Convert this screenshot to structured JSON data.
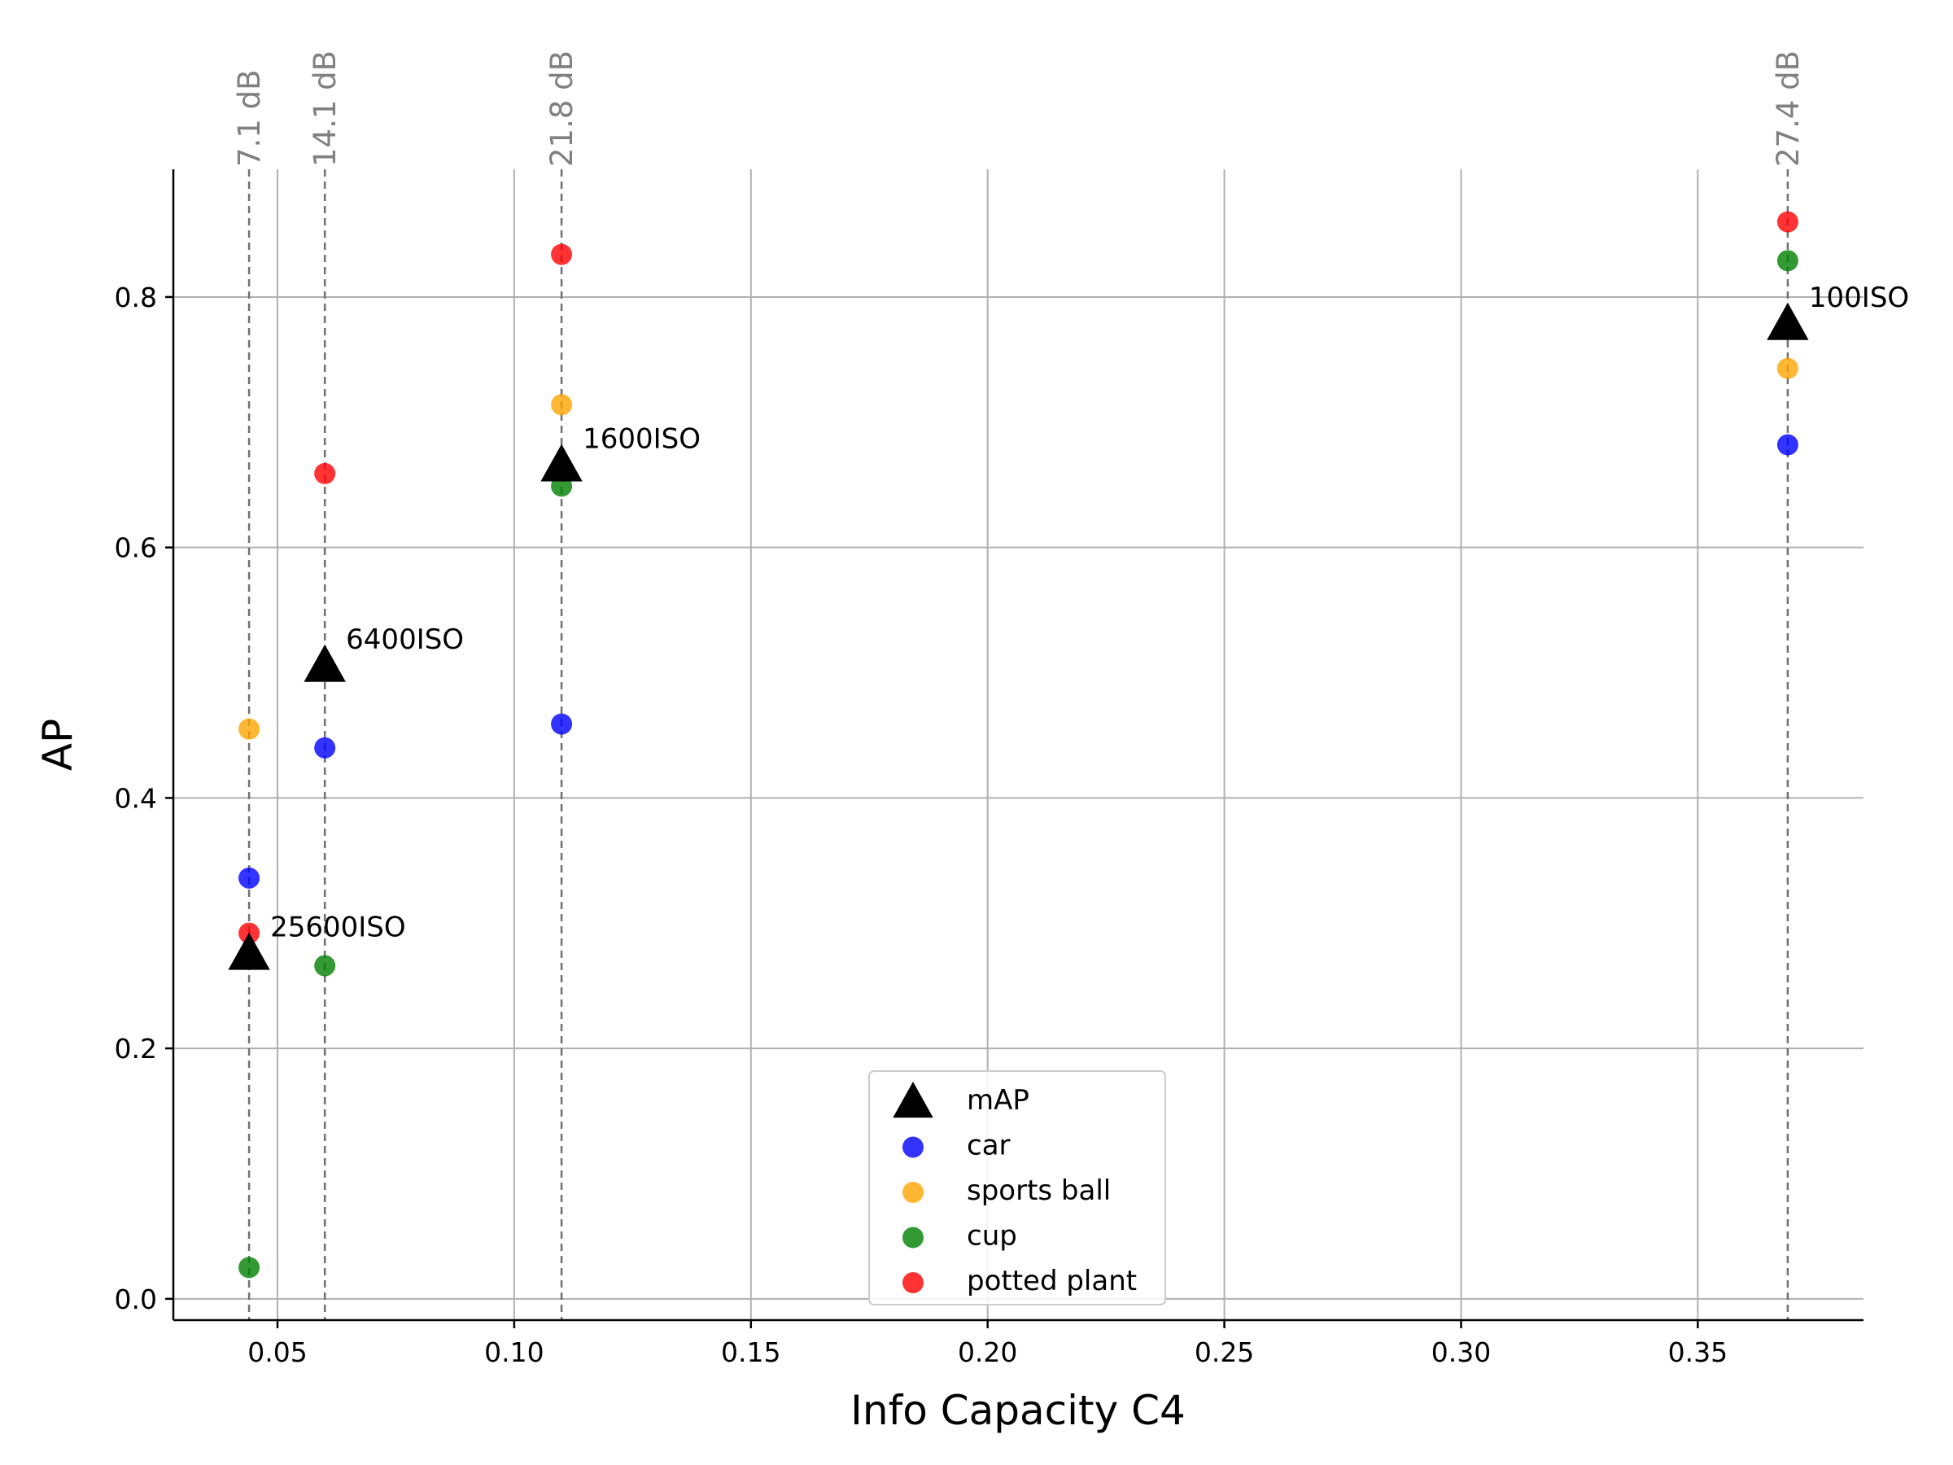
{
  "chart_data": {
    "type": "scatter",
    "xlabel": "Info Capacity C4",
    "ylabel": "AP",
    "xlim": [
      0.028,
      0.385
    ],
    "ylim": [
      -0.017,
      0.902
    ],
    "xticks": [
      0.05,
      0.1,
      0.15,
      0.2,
      0.25,
      0.3,
      0.35
    ],
    "xtick_labels": [
      "0.05",
      "0.10",
      "0.15",
      "0.20",
      "0.25",
      "0.30",
      "0.35"
    ],
    "yticks": [
      0.0,
      0.2,
      0.4,
      0.6,
      0.8
    ],
    "ytick_labels": [
      "0.0",
      "0.2",
      "0.4",
      "0.6",
      "0.8"
    ],
    "grid": true,
    "legend_position": "bottom-center",
    "vertical_lines": [
      {
        "x": 0.044,
        "label": "7.1 dB"
      },
      {
        "x": 0.06,
        "label": "14.1 dB"
      },
      {
        "x": 0.11,
        "label": "21.8 dB"
      },
      {
        "x": 0.369,
        "label": "27.4 dB"
      }
    ],
    "series": [
      {
        "name": "mAP",
        "marker": "triangle",
        "color": "#000000",
        "x": [
          0.044,
          0.06,
          0.11,
          0.369
        ],
        "y": [
          0.275,
          0.505,
          0.665,
          0.778
        ],
        "labels": [
          "25600ISO",
          "6400ISO",
          "1600ISO",
          "100ISO"
        ]
      },
      {
        "name": "car",
        "marker": "circle",
        "color": "#0000ff",
        "x": [
          0.044,
          0.06,
          0.11,
          0.369
        ],
        "y": [
          0.336,
          0.44,
          0.459,
          0.682
        ]
      },
      {
        "name": "sports ball",
        "marker": "circle",
        "color": "#ffa500",
        "x": [
          0.044,
          0.06,
          0.11,
          0.369
        ],
        "y": [
          0.455,
          0.505,
          0.714,
          0.743
        ]
      },
      {
        "name": "cup",
        "marker": "circle",
        "color": "#008000",
        "x": [
          0.044,
          0.06,
          0.11,
          0.369
        ],
        "y": [
          0.025,
          0.266,
          0.649,
          0.829
        ]
      },
      {
        "name": "potted plant",
        "marker": "circle",
        "color": "#ff0000",
        "x": [
          0.044,
          0.06,
          0.11,
          0.369
        ],
        "y": [
          0.292,
          0.659,
          0.834,
          0.86
        ]
      }
    ]
  }
}
